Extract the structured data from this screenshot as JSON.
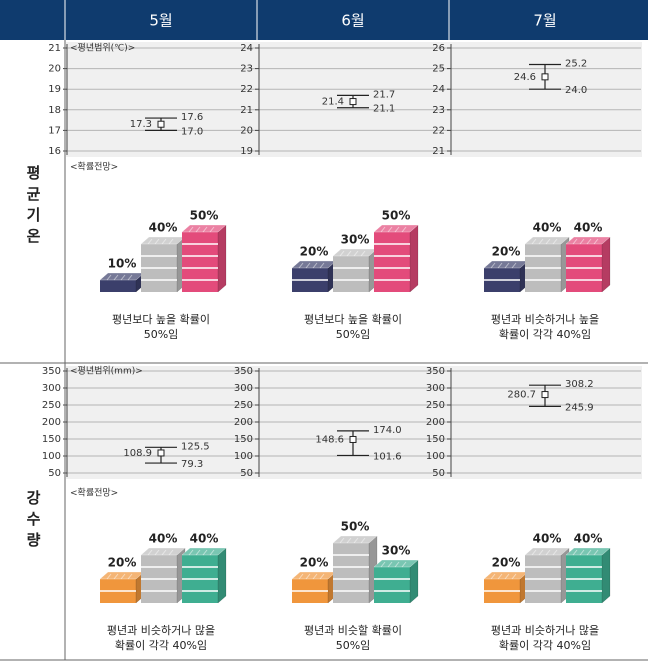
{
  "header": {
    "months": [
      "5월",
      "6월",
      "7월"
    ]
  },
  "sections": [
    {
      "label": "평균기온",
      "range": {
        "label": "<평년범위(℃)>",
        "charts": [
          {
            "ylim": [
              16,
              21
            ],
            "yticks": [
              16,
              17,
              18,
              19,
              20,
              21
            ],
            "values": [
              17.0,
              17.3,
              17.6
            ],
            "value_labels": [
              "17.0",
              "17.3",
              "17.6"
            ]
          },
          {
            "ylim": [
              19,
              24
            ],
            "yticks": [
              19,
              20,
              21,
              22,
              23,
              24
            ],
            "values": [
              21.1,
              21.4,
              21.7
            ],
            "value_labels": [
              "21.1",
              "21.4",
              "21.7"
            ]
          },
          {
            "ylim": [
              21,
              26
            ],
            "yticks": [
              21,
              22,
              23,
              24,
              25,
              26
            ],
            "values": [
              24.0,
              24.6,
              25.2
            ],
            "value_labels": [
              "24.0",
              "24.6",
              "25.2"
            ]
          }
        ]
      },
      "outlook": {
        "label": "<확률전망>",
        "colors": [
          "#3b3f6b",
          "#bdbdbd",
          "#e34b7b"
        ],
        "panels": [
          {
            "values": [
              10,
              40,
              50
            ],
            "value_labels": [
              "10%",
              "40%",
              "50%"
            ],
            "caption": [
              "평년보다 높을 확률이",
              "50%임"
            ]
          },
          {
            "values": [
              20,
              30,
              50
            ],
            "value_labels": [
              "20%",
              "30%",
              "50%"
            ],
            "caption": [
              "평년보다 높을 확률이",
              "50%임"
            ]
          },
          {
            "values": [
              20,
              40,
              40
            ],
            "value_labels": [
              "20%",
              "40%",
              "40%"
            ],
            "caption": [
              "평년과 비슷하거나 높을",
              "확률이 각각 40%임"
            ]
          }
        ]
      }
    },
    {
      "label": "강수량",
      "range": {
        "label": "<평년범위(mm)>",
        "charts": [
          {
            "ylim": [
              50,
              350
            ],
            "yticks": [
              50,
              100,
              150,
              200,
              250,
              300,
              350
            ],
            "values": [
              79.3,
              108.9,
              125.5
            ],
            "value_labels": [
              "79.3",
              "108.9",
              "125.5"
            ]
          },
          {
            "ylim": [
              50,
              350
            ],
            "yticks": [
              50,
              100,
              150,
              200,
              250,
              300,
              350
            ],
            "values": [
              101.6,
              148.6,
              174.0
            ],
            "value_labels": [
              "101.6",
              "148.6",
              "174.0"
            ]
          },
          {
            "ylim": [
              50,
              350
            ],
            "yticks": [
              50,
              100,
              150,
              200,
              250,
              300,
              350
            ],
            "values": [
              245.9,
              280.7,
              308.2
            ],
            "value_labels": [
              "245.9",
              "280.7",
              "308.2"
            ]
          }
        ]
      },
      "outlook": {
        "label": "<확률전망>",
        "colors": [
          "#f0963c",
          "#bdbdbd",
          "#3fae91"
        ],
        "panels": [
          {
            "values": [
              20,
              40,
              40
            ],
            "value_labels": [
              "20%",
              "40%",
              "40%"
            ],
            "caption": [
              "평년과 비슷하거나 많을",
              "확률이 각각 40%임"
            ]
          },
          {
            "values": [
              20,
              50,
              30
            ],
            "value_labels": [
              "20%",
              "50%",
              "30%"
            ],
            "caption": [
              "평년과 비슷할 확률이",
              "50%임"
            ]
          },
          {
            "values": [
              20,
              40,
              40
            ],
            "value_labels": [
              "20%",
              "40%",
              "40%"
            ],
            "caption": [
              "평년과 비슷하거나 많을",
              "확률이 각각 40%임"
            ]
          }
        ]
      }
    }
  ]
}
